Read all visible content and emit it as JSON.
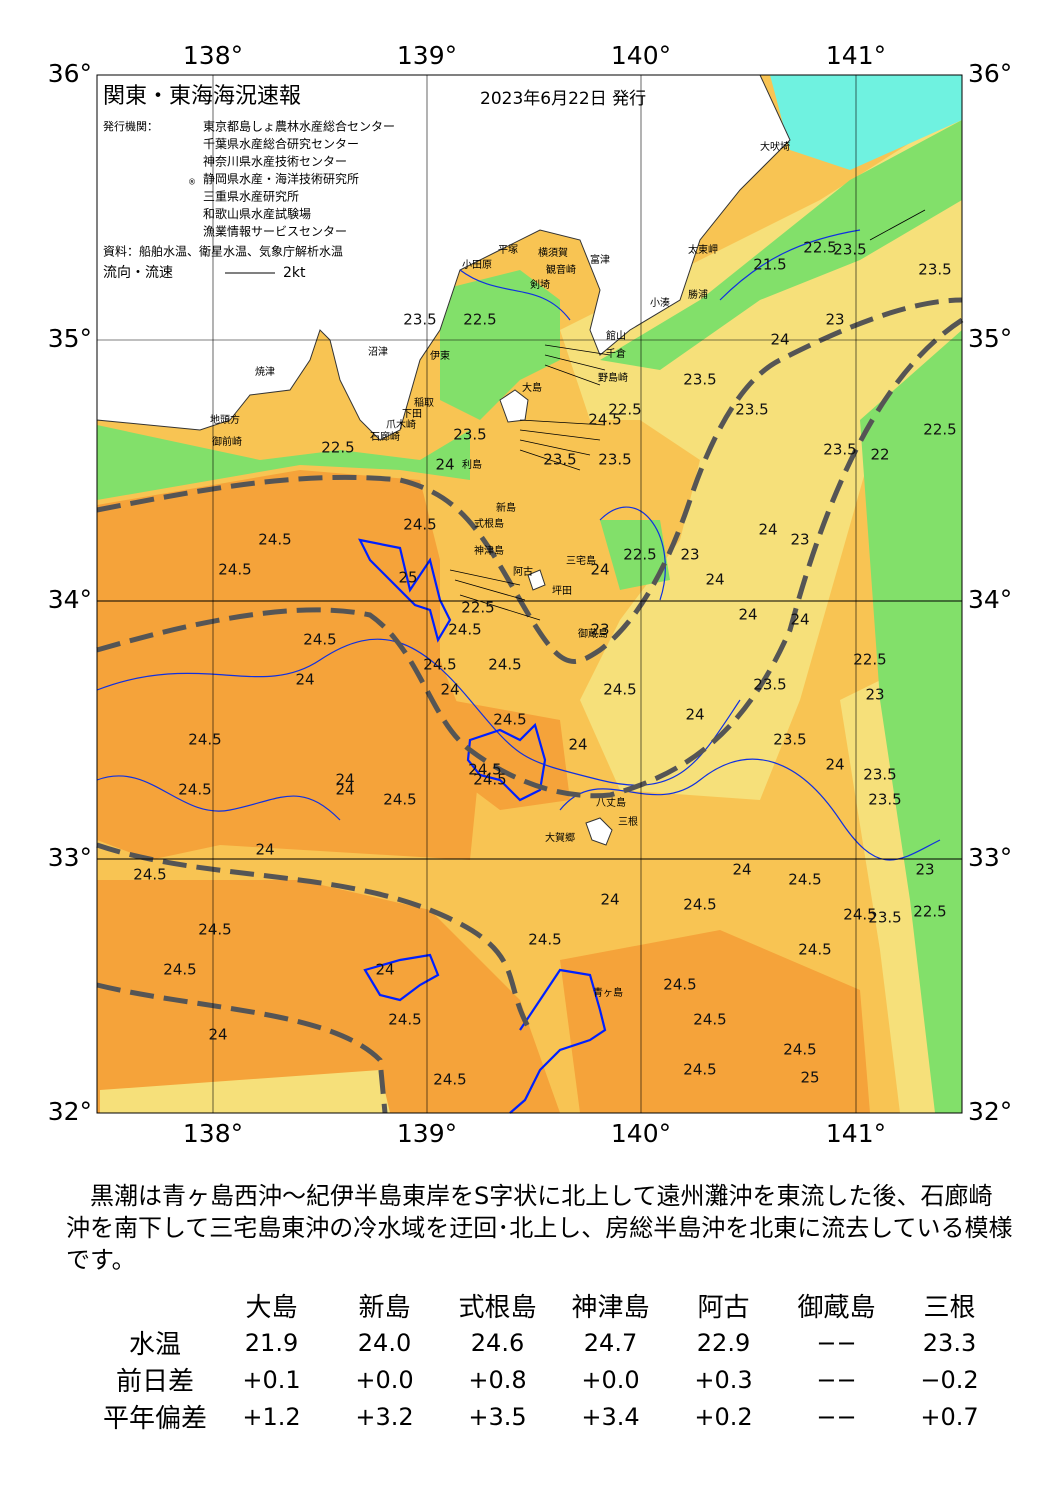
{
  "map": {
    "title": "関東・東海海況速報",
    "date": "2023年6月22日 発行",
    "issuer_label": "発行機関：",
    "issuers": [
      "東京都島しょ農林水産総合センター",
      "千葉県水産総合研究センター",
      "神奈川県水産技術センター",
      "静岡県水産・海洋技術研究所",
      "三重県水産研究所",
      "和歌山県水産試験場",
      "漁業情報サービスセンター"
    ],
    "issuer_mark": "®",
    "source": "資料：船舶水温、衛星水温、気象庁解析水温",
    "legend": {
      "label": "流向・流速",
      "scale": "2kt"
    },
    "lon_labels": [
      "138°",
      "139°",
      "140°",
      "141°"
    ],
    "lat_labels": [
      "36°",
      "35°",
      "34°",
      "33°",
      "32°"
    ],
    "places": [
      "大吠埼",
      "太東岬",
      "勝浦",
      "小湊",
      "富津",
      "平塚",
      "横須賀",
      "観音崎",
      "剣埼",
      "小田原",
      "館山",
      "千倉",
      "野島崎",
      "大島",
      "沼津",
      "伊東",
      "焼津",
      "地頭方",
      "御前崎",
      "稲取",
      "下田",
      "爪木崎",
      "石廊崎",
      "利島",
      "新島",
      "式根島",
      "神津島",
      "三宅島",
      "坪田",
      "阿古",
      "御蔵島",
      "八丈島",
      "三根",
      "大賀郷",
      "青ヶ島"
    ],
    "contours": [
      "22.5",
      "21.5",
      "22.5",
      "23.5",
      "23.5",
      "24",
      "23",
      "22.5",
      "23.5",
      "23.5",
      "22.5",
      "23.5",
      "23.5",
      "24",
      "23.5",
      "23",
      "22.5",
      "22",
      "22.5",
      "23",
      "24",
      "24",
      "24.5",
      "24.5",
      "24.5",
      "24.5",
      "24",
      "24.5",
      "24",
      "24.5",
      "24.5",
      "25",
      "24.5",
      "24.5",
      "24.5",
      "24",
      "24.5",
      "23.5",
      "24.5",
      "23.5",
      "24",
      "22.5",
      "23",
      "23.5",
      "24",
      "23.5",
      "23.5",
      "23.5",
      "24",
      "24",
      "24",
      "24",
      "24.5",
      "24.5",
      "24.5",
      "24.5",
      "24.5",
      "24.5",
      "24.5",
      "25",
      "24.5",
      "24.5",
      "24",
      "24",
      "24.5",
      "24",
      "24.5",
      "24.5",
      "24.5",
      "23",
      "22.5",
      "23.5",
      "24",
      "24.5",
      "24.5",
      "24.5",
      "24",
      "24",
      "23",
      "22.5",
      "24.5"
    ]
  },
  "description": "黒潮は青ヶ島西沖～紀伊半島東岸をS字状に北上して遠州灘沖を東流した後、石廊崎沖を南下して三宅島東沖の冷水域を迂回･北上し、房総半島沖を北東に流去している模様です。",
  "table": {
    "columns": [
      "大島",
      "新島",
      "式根島",
      "神津島",
      "阿古",
      "御蔵島",
      "三根"
    ],
    "rows": [
      {
        "label": "水温",
        "values": [
          "21.9",
          "24.0",
          "24.6",
          "24.7",
          "22.9",
          "−−",
          "23.3"
        ]
      },
      {
        "label": "前日差",
        "values": [
          "+0.1",
          "+0.0",
          "+0.8",
          "+0.0",
          "+0.3",
          "−−",
          "−0.2"
        ]
      },
      {
        "label": "平年偏差",
        "values": [
          "+1.2",
          "+3.2",
          "+3.5",
          "+3.4",
          "+0.2",
          "−−",
          "+0.7"
        ]
      }
    ]
  }
}
